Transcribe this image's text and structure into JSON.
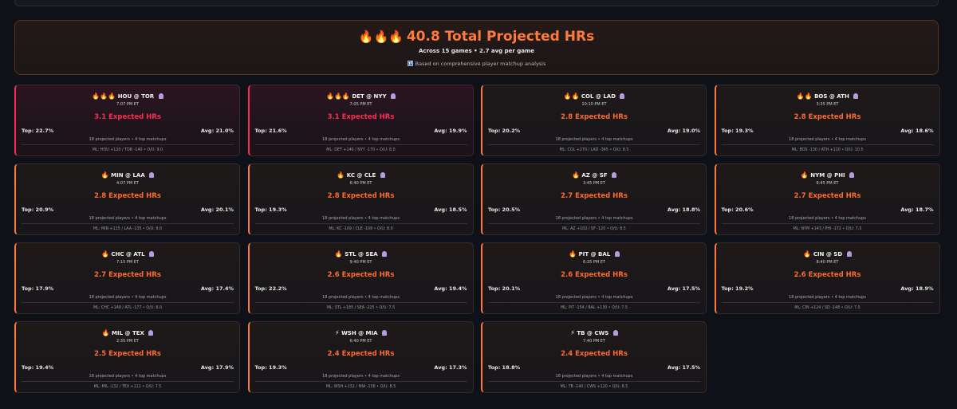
{
  "summary": {
    "fires": "🔥🔥🔥",
    "title": "40.8 Total Projected HRs",
    "subtitle": "Across 15 games • 2.7 avg per game",
    "note": "Based on comprehensive player matchup analysis",
    "note_icon": "bar-chart-icon"
  },
  "colors": {
    "accent_orange": "#ff7a3a",
    "accent_red": "#ff2a52",
    "background": "#0e1117"
  },
  "games": [
    {
      "emoji": "🔥🔥🔥",
      "matchup": "HOU @ TOR",
      "time": "7:07 PM ET",
      "expected": "3.1 Expected HRs",
      "top": "Top: 22.7%",
      "avg": "Avg: 21.0%",
      "info": "18 projected players • 4 top matchups",
      "odds": "ML: HOU +120 / TOR -140 • O/U: 9.0",
      "hot": true
    },
    {
      "emoji": "🔥🔥🔥",
      "matchup": "DET @ NYY",
      "time": "7:05 PM ET",
      "expected": "3.1 Expected HRs",
      "top": "Top: 21.6%",
      "avg": "Avg: 19.9%",
      "info": "18 projected players • 4 top matchups",
      "odds": "ML: DET +140 / NYY -170 • O/U: 8.0",
      "hot": true
    },
    {
      "emoji": "🔥🔥",
      "matchup": "COL @ LAD",
      "time": "10:10 PM ET",
      "expected": "2.8 Expected HRs",
      "top": "Top: 20.2%",
      "avg": "Avg: 19.0%",
      "info": "18 projected players • 4 top matchups",
      "odds": "ML: COL +270 / LAD -345 • O/U: 8.5",
      "hot": false
    },
    {
      "emoji": "🔥🔥",
      "matchup": "BOS @ ATH",
      "time": "3:35 PM ET",
      "expected": "2.8 Expected HRs",
      "top": "Top: 19.3%",
      "avg": "Avg: 18.6%",
      "info": "18 projected players • 4 top matchups",
      "odds": "ML: BOS -130 / ATH +110 • O/U: 10.5",
      "hot": false
    },
    {
      "emoji": "🔥",
      "matchup": "MIN @ LAA",
      "time": "4:07 PM ET",
      "expected": "2.8 Expected HRs",
      "top": "Top: 20.9%",
      "avg": "Avg: 20.1%",
      "info": "18 projected players • 4 top matchups",
      "odds": "ML: MIN +115 / LAA -135 • O/U: 9.0",
      "hot": false
    },
    {
      "emoji": "🔥",
      "matchup": "KC @ CLE",
      "time": "6:40 PM ET",
      "expected": "2.8 Expected HRs",
      "top": "Top: 19.3%",
      "avg": "Avg: 18.5%",
      "info": "18 projected players • 4 top matchups",
      "odds": "ML: KC -109 / CLE -109 • O/U: 8.0",
      "hot": false
    },
    {
      "emoji": "🔥",
      "matchup": "AZ @ SF",
      "time": "3:45 PM ET",
      "expected": "2.7 Expected HRs",
      "top": "Top: 20.5%",
      "avg": "Avg: 18.8%",
      "info": "18 projected players • 4 top matchups",
      "odds": "ML: AZ +102 / SF -120 • O/U: 8.5",
      "hot": false
    },
    {
      "emoji": "🔥",
      "matchup": "NYM @ PHI",
      "time": "6:45 PM ET",
      "expected": "2.7 Expected HRs",
      "top": "Top: 20.6%",
      "avg": "Avg: 18.7%",
      "info": "18 projected players • 4 top matchups",
      "odds": "ML: NYM +143 / PHI -172 • O/U: 7.5",
      "hot": false
    },
    {
      "emoji": "🔥",
      "matchup": "CHC @ ATL",
      "time": "7:15 PM ET",
      "expected": "2.7 Expected HRs",
      "top": "Top: 17.9%",
      "avg": "Avg: 17.4%",
      "info": "18 projected players • 4 top matchups",
      "odds": "ML: CHC +148 / ATL -177 • O/U: 8.0",
      "hot": false
    },
    {
      "emoji": "🔥",
      "matchup": "STL @ SEA",
      "time": "9:40 PM ET",
      "expected": "2.6 Expected HRs",
      "top": "Top: 22.2%",
      "avg": "Avg: 19.4%",
      "info": "18 projected players • 4 top matchups",
      "odds": "ML: STL +185 / SEA -225 • O/U: 7.5",
      "hot": false
    },
    {
      "emoji": "🔥",
      "matchup": "PIT @ BAL",
      "time": "6:35 PM ET",
      "expected": "2.6 Expected HRs",
      "top": "Top: 20.1%",
      "avg": "Avg: 17.5%",
      "info": "18 projected players • 4 top matchups",
      "odds": "ML: PIT -154 / BAL +130 • O/U: 7.5",
      "hot": false
    },
    {
      "emoji": "🔥",
      "matchup": "CIN @ SD",
      "time": "8:40 PM ET",
      "expected": "2.6 Expected HRs",
      "top": "Top: 19.2%",
      "avg": "Avg: 18.9%",
      "info": "18 projected players • 4 top matchups",
      "odds": "ML: CIN +124 / SD -148 • O/U: 7.5",
      "hot": false
    },
    {
      "emoji": "🔥",
      "matchup": "MIL @ TEX",
      "time": "2:35 PM ET",
      "expected": "2.5 Expected HRs",
      "top": "Top: 19.4%",
      "avg": "Avg: 17.9%",
      "info": "18 projected players • 4 top matchups",
      "odds": "ML: MIL -132 / TEX +111 • O/U: 7.5",
      "hot": false
    },
    {
      "emoji": "⚡",
      "matchup": "WSH @ MIA",
      "time": "6:40 PM ET",
      "expected": "2.4 Expected HRs",
      "top": "Top: 19.3%",
      "avg": "Avg: 17.3%",
      "info": "18 projected players • 4 top matchups",
      "odds": "ML: WSH +132 / MIA -158 • O/U: 8.5",
      "hot": false
    },
    {
      "emoji": "⚡",
      "matchup": "TB @ CWS",
      "time": "7:40 PM ET",
      "expected": "2.4 Expected HRs",
      "top": "Top: 18.8%",
      "avg": "Avg: 17.5%",
      "info": "18 projected players • 4 top matchups",
      "odds": "ML: TB -140 / CWS +120 • O/U: 8.5",
      "hot": false
    }
  ]
}
